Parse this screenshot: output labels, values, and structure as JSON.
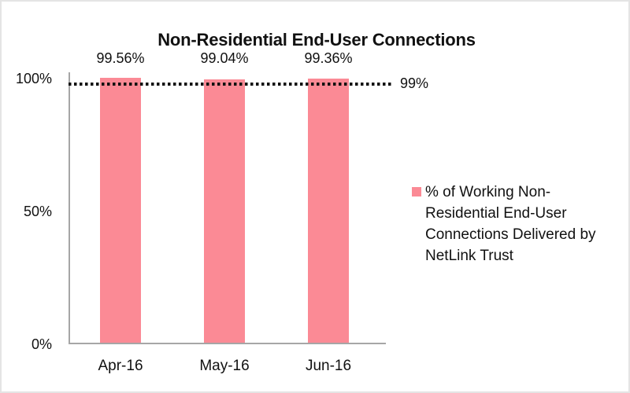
{
  "chart_data": {
    "type": "bar",
    "title": "Non-Residential End-User Connections",
    "categories": [
      "Apr-16",
      "May-16",
      "Jun-16"
    ],
    "series": [
      {
        "name": "% of Working Non-Residential End-User Connections Delivered by NetLink Trust",
        "values": [
          99.56,
          99.04,
          99.36
        ]
      }
    ],
    "data_labels": [
      "99.56%",
      "99.04%",
      "99.36%"
    ],
    "xlabel": "",
    "ylabel": "",
    "ylim": [
      0,
      100
    ],
    "y_ticks": [
      "100%",
      "50%",
      "0%"
    ],
    "y_tick_values": [
      100,
      50,
      0
    ],
    "grid": false,
    "reference_line": {
      "value": 99,
      "label": "99%"
    },
    "legend": {
      "position": "right",
      "items": [
        {
          "label": "% of Working Non-Residential End-User Connections Delivered by NetLink Trust",
          "color": "#fb8a95"
        }
      ]
    },
    "colors": {
      "bar": "#fb8a95",
      "axis": "#a6a6a6",
      "text": "#111111",
      "reference_line": "#111111",
      "background": "#ffffff"
    }
  }
}
